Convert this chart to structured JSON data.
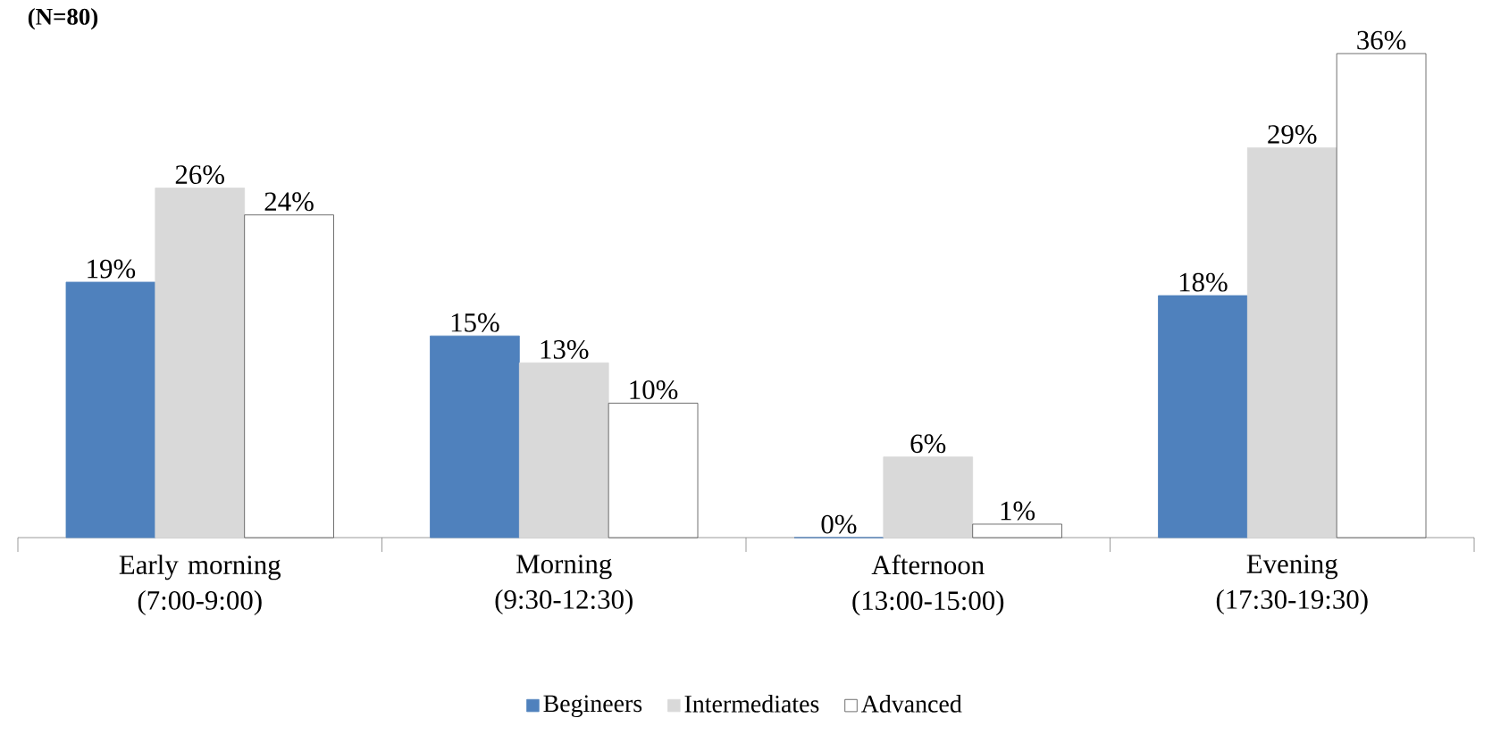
{
  "chart_data": {
    "type": "bar",
    "title": "(N=80)",
    "categories": [
      "Early morning (7:00-9:00)",
      "Morning (9:30-12:30)",
      "Afternoon (13:00-15:00)",
      "Evening (17:30-19:30)"
    ],
    "series": [
      {
        "name": "Begineers",
        "color": "#4f81bd",
        "values": [
          19,
          15,
          0,
          18
        ],
        "value_labels": [
          "19%",
          "15%",
          "0%",
          "18%"
        ]
      },
      {
        "name": "Intermediates",
        "color": "#d9d9d9",
        "values": [
          26,
          13,
          6,
          29
        ],
        "value_labels": [
          "26%",
          "13%",
          "6%",
          "29%"
        ]
      },
      {
        "name": "Advanced",
        "color": "#ffffff",
        "values": [
          24,
          10,
          1,
          36
        ],
        "value_labels": [
          "24%",
          "10%",
          "1%",
          "36%"
        ]
      }
    ],
    "legend": "bottom"
  }
}
